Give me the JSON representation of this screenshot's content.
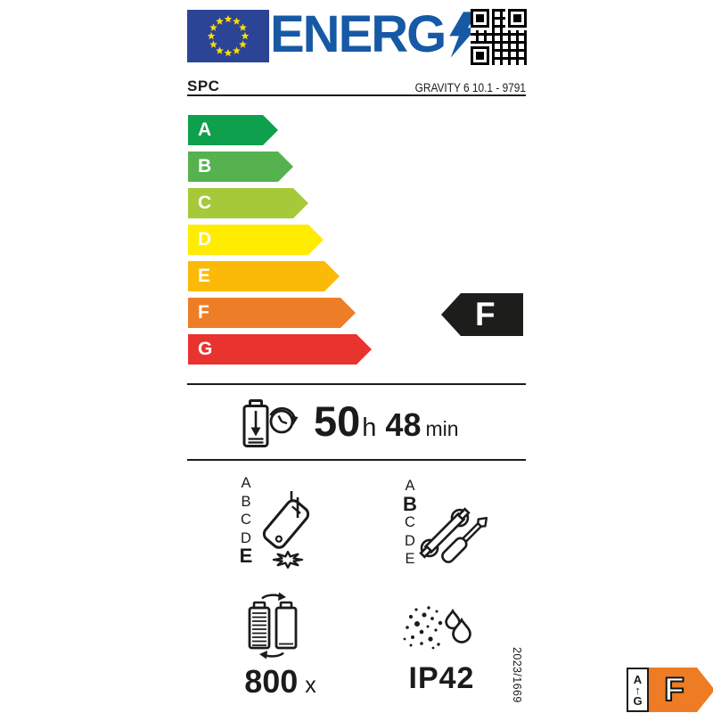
{
  "header": {
    "logo_text": "ENERG",
    "brand": "SPC",
    "model": "GRAVITY 6 10.1 - 9791"
  },
  "colors": {
    "ink": "#1b1b19",
    "eu_flag_blue": "#2b4496",
    "star_yellow": "#ffdd00",
    "logo_blue": "#1659a5"
  },
  "energy_scale": {
    "classes": [
      {
        "label": "A",
        "color": "#0ea04c"
      },
      {
        "label": "B",
        "color": "#55b24e"
      },
      {
        "label": "C",
        "color": "#a6c939"
      },
      {
        "label": "D",
        "color": "#ffec00"
      },
      {
        "label": "E",
        "color": "#fbba07"
      },
      {
        "label": "F",
        "color": "#ee7d28"
      },
      {
        "label": "G",
        "color": "#e9332f"
      }
    ],
    "rating": "F",
    "rating_color": "#1d1d1b"
  },
  "battery_endurance": {
    "hours": "50",
    "hours_unit": "h",
    "minutes": "48",
    "minutes_unit": "min"
  },
  "drop_resistance": {
    "scale": [
      "A",
      "B",
      "C",
      "D",
      "E"
    ],
    "rating": "E"
  },
  "repairability": {
    "scale": [
      "A",
      "B",
      "C",
      "D",
      "E"
    ],
    "rating": "B"
  },
  "battery_cycles": {
    "value": "800",
    "unit": "x"
  },
  "ingress_protection": {
    "rating": "IP42"
  },
  "regulation_number": "2023/1669",
  "mini_label": {
    "scale_top": "A",
    "scale_bottom": "G",
    "arrow_glyph": "↑",
    "rating": "F",
    "color": "#ee7c24"
  },
  "icons": {
    "header": [
      "eu-flag",
      "lightning-bolt-icon",
      "qr-code"
    ],
    "battery_endurance": "battery-clock-icon",
    "drop_resistance": "falling-phone-icon",
    "repairability": "wrench-screwdriver-icon",
    "battery_cycles": "battery-recharge-cycle-icon",
    "ingress_protection": "dust-and-water-drops-icon",
    "mini_label": "up-arrow-icon"
  }
}
